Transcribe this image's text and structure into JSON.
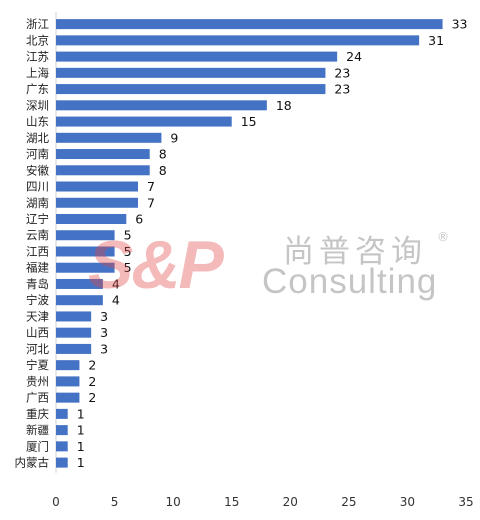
{
  "chart_data": {
    "type": "bar",
    "orientation": "horizontal",
    "categories": [
      "浙江",
      "北京",
      "江苏",
      "上海",
      "广东",
      "深圳",
      "山东",
      "湖北",
      "河南",
      "安徽",
      "四川",
      "湖南",
      "辽宁",
      "云南",
      "江西",
      "福建",
      "青岛",
      "宁波",
      "天津",
      "山西",
      "河北",
      "宁夏",
      "贵州",
      "广西",
      "重庆",
      "新疆",
      "厦门",
      "内蒙古"
    ],
    "values": [
      33,
      31,
      24,
      23,
      23,
      18,
      15,
      9,
      8,
      8,
      7,
      7,
      6,
      5,
      5,
      5,
      4,
      4,
      3,
      3,
      3,
      2,
      2,
      2,
      1,
      1,
      1,
      1
    ],
    "xlim": [
      0,
      35
    ],
    "xticks": [
      "0",
      "5",
      "10",
      "15",
      "20",
      "25",
      "30",
      "35"
    ],
    "bar_color": "#4472C4",
    "grid": false,
    "data_labels": true
  },
  "watermark": {
    "logo": "S&P",
    "name_cn": "尚普咨询",
    "registered": "®",
    "name_en": "Consulting"
  }
}
